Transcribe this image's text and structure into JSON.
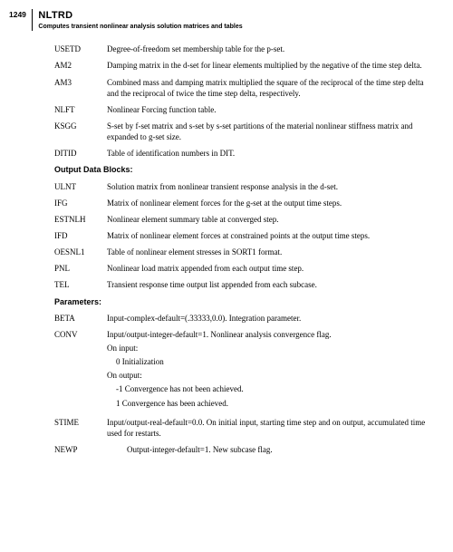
{
  "page_number": "1249",
  "module_name": "NLTRD",
  "module_desc": "Computes transient nonlinear analysis solution matrices and tables",
  "input_rows": [
    {
      "term": "USETD",
      "desc": "Degree-of-freedom set membership table for the p-set."
    },
    {
      "term": "AM2",
      "desc": "Damping matrix in the d-set for linear elements multiplied by the negative of the time step delta."
    },
    {
      "term": "AM3",
      "desc": "Combined mass and damping matrix multiplied the square of the reciprocal of the time step delta and the reciprocal of twice the time step delta, respectively."
    },
    {
      "term": "NLFT",
      "desc": "Nonlinear Forcing function table."
    },
    {
      "term": "KSGG",
      "desc": "S-set by f-set matrix and s-set by s-set partitions of the material nonlinear stiffness matrix and expanded to g-set size."
    },
    {
      "term": "DITID",
      "desc": "Table of identification numbers in DIT."
    }
  ],
  "output_header": "Output Data Blocks:",
  "output_rows": [
    {
      "term": "ULNT",
      "desc": "Solution matrix from nonlinear transient response analysis in the d-set."
    },
    {
      "term": "IFG",
      "desc": "Matrix of nonlinear element forces for the g-set at the output time steps."
    },
    {
      "term": "ESTNLH",
      "desc": "Nonlinear element summary table at converged step."
    },
    {
      "term": "IFD",
      "desc": "Matrix of nonlinear element forces at constrained points at the output time steps."
    },
    {
      "term": "OESNL1",
      "desc": "Table of nonlinear element stresses in SORT1 format."
    },
    {
      "term": "PNL",
      "desc": "Nonlinear load matrix appended from each output time step."
    },
    {
      "term": "TEL",
      "desc": "Transient response time output list appended from each subcase."
    }
  ],
  "params_header": "Parameters:",
  "beta": {
    "term": "BETA",
    "desc": "Input-complex-default=(.33333,0.0). Integration parameter."
  },
  "conv": {
    "term": "CONV",
    "main": "Input/output-integer-default=1. Nonlinear analysis convergence flag.",
    "on_input": "On input:",
    "init": "0  Initialization",
    "on_output": "On output:",
    "neg1": "-1  Convergence has not been achieved.",
    "pos1": "1  Convergence has been achieved."
  },
  "stime": {
    "term": "STIME",
    "desc": "Input/output-real-default=0.0. On initial input, starting time step and on output, accumulated time used for restarts."
  },
  "newp": {
    "term": "NEWP",
    "desc": "Output-integer-default=1. New subcase flag."
  }
}
